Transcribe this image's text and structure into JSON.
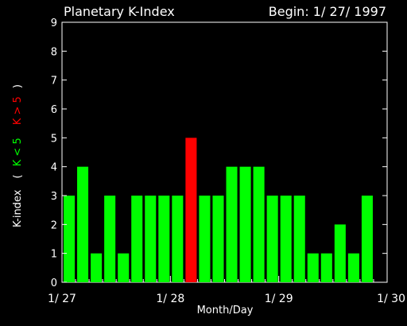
{
  "chart_data": {
    "type": "bar",
    "title": "Planetary K-Index",
    "subtitle": "Begin: 1/ 27/ 1997",
    "xlabel": "Month/Day",
    "ylabel": {
      "prefix": "K-index",
      "open": "(",
      "green_part": "K < 5",
      "red_part": "K > 5",
      "close": ")"
    },
    "ylim": [
      0,
      9
    ],
    "yticks": [
      "0",
      "1",
      "2",
      "3",
      "4",
      "5",
      "6",
      "7",
      "8",
      "9"
    ],
    "xticks": [
      {
        "label": "1/ 27",
        "value": 0
      },
      {
        "label": "1/ 28",
        "value": 8
      },
      {
        "label": "1/ 29",
        "value": 16
      },
      {
        "label": "1/ 30",
        "value": 24
      }
    ],
    "bars_per_day": 8,
    "values": [
      3,
      4,
      1,
      3,
      1,
      3,
      3,
      3,
      3,
      5,
      3,
      3,
      4,
      4,
      4,
      3,
      3,
      3,
      1,
      1,
      2,
      1,
      3
    ],
    "threshold": 5,
    "colors": {
      "background": "#000000",
      "axis": "#ffffff",
      "low": "#00ff00",
      "high": "#ff0000"
    }
  }
}
